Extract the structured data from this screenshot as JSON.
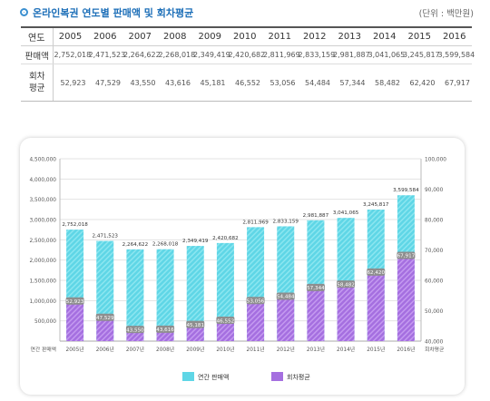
{
  "header": {
    "title": "온라인복권 연도별 판매액 및 회차평균",
    "unit": "(단위 : 백만원)"
  },
  "table": {
    "year_label": "연도",
    "years": [
      "2005",
      "2006",
      "2007",
      "2008",
      "2009",
      "2010",
      "2011",
      "2012",
      "2013",
      "2014",
      "2015",
      "2016"
    ],
    "sales_label": "판매액",
    "sales": [
      "2,752,018",
      "2,471,523",
      "2,264,622",
      "2,268,018",
      "2,349,419",
      "2,420,682",
      "2,811,969",
      "2,833,159",
      "2,981,887",
      "3,041,065",
      "3,245,817",
      "3,599,584"
    ],
    "avg_label_1": "회차",
    "avg_label_2": "평균",
    "avg": [
      "52,923",
      "47,529",
      "43,550",
      "43,616",
      "45,181",
      "46,552",
      "53,056",
      "54,484",
      "57,344",
      "58,482",
      "62,420",
      "67,917"
    ]
  },
  "chart_data": {
    "type": "bar",
    "categories": [
      "2005년",
      "2006년",
      "2007년",
      "2008년",
      "2009년",
      "2010년",
      "2011년",
      "2012년",
      "2013년",
      "2014년",
      "2015년",
      "2016년"
    ],
    "series": [
      {
        "name": "연간 판매액",
        "axis": "left",
        "color": "#5fd6e6",
        "values": [
          2752018,
          2471523,
          2264622,
          2268018,
          2349419,
          2420682,
          2811969,
          2833159,
          2981887,
          3041065,
          3245817,
          3599584
        ]
      },
      {
        "name": "회차평균",
        "axis": "right",
        "color": "#a56fe0",
        "values": [
          52923,
          47529,
          43550,
          43616,
          45181,
          46552,
          53056,
          54484,
          57344,
          58482,
          62420,
          67917
        ]
      }
    ],
    "left_axis": {
      "label": "연간 판매액",
      "ylim": [
        0,
        4500000
      ],
      "ticks": [
        500000,
        1000000,
        1500000,
        2000000,
        2500000,
        3000000,
        3500000,
        4000000,
        4500000
      ]
    },
    "right_axis": {
      "label": "회차평균",
      "ylim": [
        40000,
        100000
      ],
      "ticks": [
        40000,
        50000,
        60000,
        70000,
        80000,
        90000,
        100000
      ]
    },
    "legend_position": "bottom",
    "grid": true
  }
}
